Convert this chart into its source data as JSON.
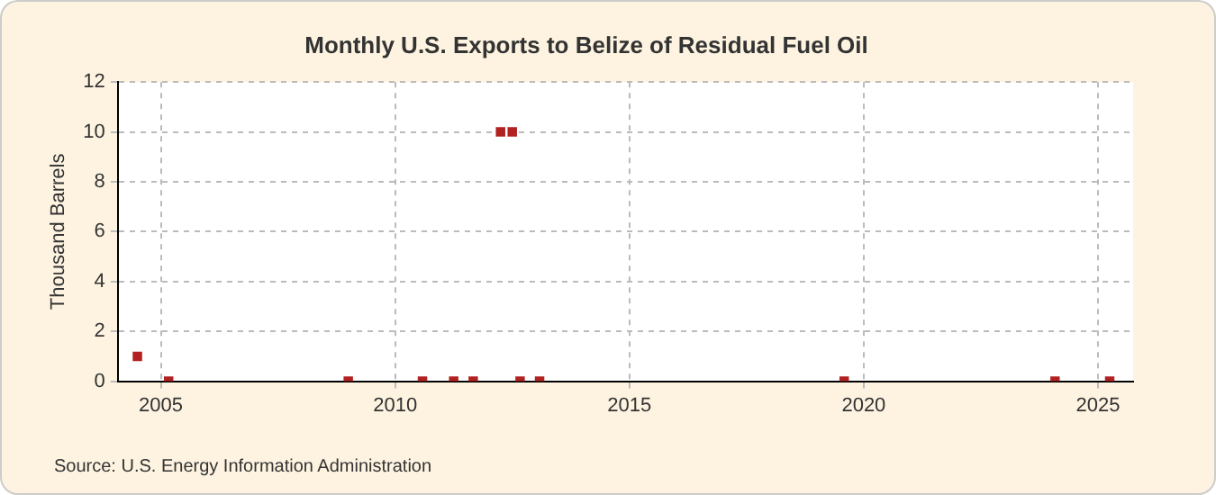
{
  "chart_data": {
    "type": "scatter",
    "title": "Monthly U.S. Exports to Belize of Residual Fuel Oil",
    "ylabel": "Thousand Barrels",
    "annotations": [
      "Source: U.S. Energy Information Administration"
    ],
    "x": [
      "2004-07",
      "2005-03",
      "2009-01",
      "2010-08",
      "2011-04",
      "2011-09",
      "2012-04",
      "2012-07",
      "2012-09",
      "2013-02",
      "2019-08",
      "2024-02",
      "2025-04"
    ],
    "series": [
      {
        "color": "#b22222",
        "values": [
          1,
          0,
          0,
          0,
          0,
          0,
          10,
          10,
          0,
          0,
          0,
          0,
          0
        ]
      }
    ],
    "xlim": [
      "2004-02",
      "2025-10"
    ],
    "xticks": [
      "2005",
      "2010",
      "2015",
      "2020",
      "2025"
    ],
    "ylim": [
      0,
      12
    ],
    "yticks": [
      0,
      2,
      4,
      6,
      8,
      10,
      12
    ],
    "grid": true,
    "legend": false,
    "marker": "square"
  }
}
